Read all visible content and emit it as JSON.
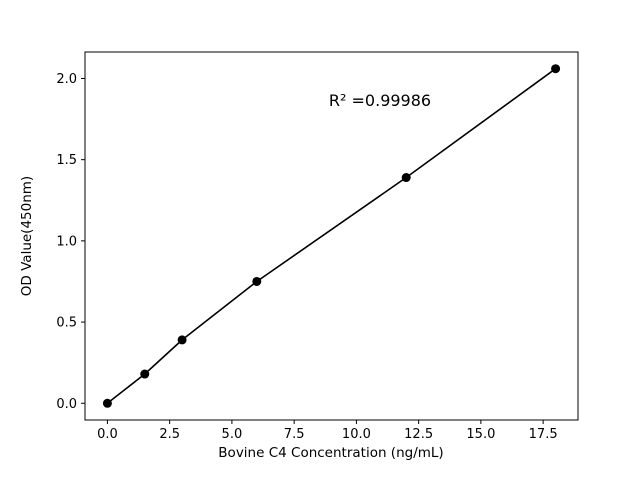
{
  "chart_data": {
    "type": "scatter",
    "title": "",
    "xlabel": "Bovine C4 Concentration (ng/mL)",
    "ylabel": "OD Value(450nm)",
    "annotation": "R² =0.99986",
    "x": [
      0,
      1.5,
      3,
      6,
      12,
      18
    ],
    "y": [
      0.0,
      0.18,
      0.39,
      0.75,
      1.39,
      2.06
    ],
    "fit_line": true,
    "xlim": [
      -0.9,
      18.9
    ],
    "ylim": [
      -0.103,
      2.163
    ],
    "xticks": [
      0.0,
      2.5,
      5.0,
      7.5,
      10.0,
      12.5,
      15.0,
      17.5
    ],
    "xtick_labels": [
      "0.0",
      "2.5",
      "5.0",
      "7.5",
      "10.0",
      "12.5",
      "15.0",
      "17.5"
    ],
    "yticks": [
      0.0,
      0.5,
      1.0,
      1.5,
      2.0
    ],
    "ytick_labels": [
      "0.0",
      "0.5",
      "1.0",
      "1.5",
      "2.0"
    ],
    "grid": false,
    "legend": "none",
    "marker_color": "#000000",
    "line_color": "#000000",
    "axis_color": "#000000",
    "background_color": "#ffffff"
  }
}
